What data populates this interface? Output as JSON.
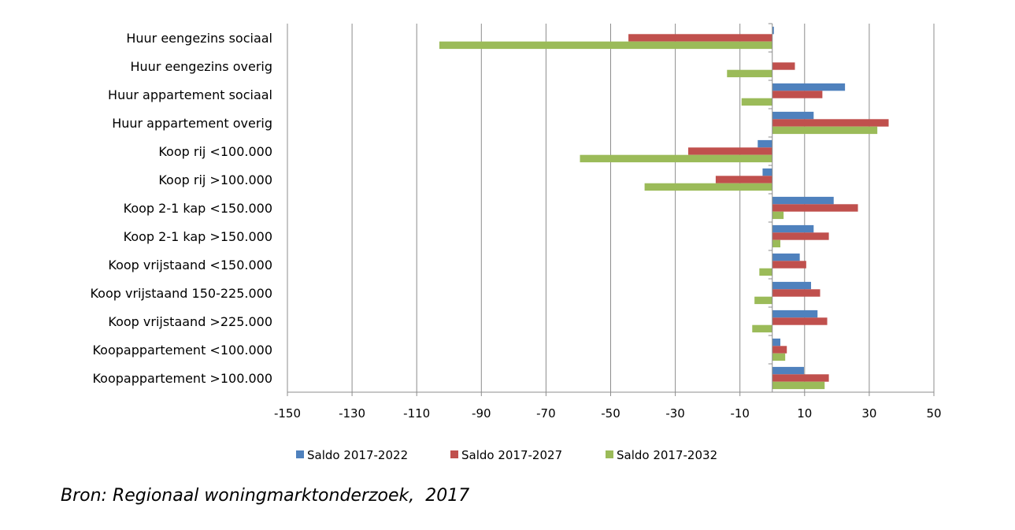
{
  "chart_data": {
    "type": "bar",
    "orientation": "horizontal",
    "categories": [
      "Huur eengezins sociaal",
      "Huur eengezins overig",
      "Huur appartement sociaal",
      "Huur appartement overig",
      "Koop rij <100.000",
      "Koop rij >100.000",
      "Koop 2-1 kap <150.000",
      "Koop 2-1 kap >150.000",
      "Koop vrijstaand <150.000",
      "Koop vrijstaand 150-225.000",
      "Koop vrijstaand >225.000",
      "Koopappartement <100.000",
      "Koopappartement >100.000"
    ],
    "series": [
      {
        "name": "Saldo 2017-2022",
        "color": "#4f81bd",
        "values": [
          0.5,
          0,
          22.5,
          12.8,
          -4.5,
          -3,
          19,
          12.8,
          8.5,
          12,
          14,
          2.5,
          9.8
        ]
      },
      {
        "name": "Saldo 2017-2027",
        "color": "#c0504d",
        "values": [
          -44.5,
          7,
          15.5,
          36,
          -26,
          -17.5,
          26.5,
          17.5,
          10.5,
          14.8,
          17,
          4.5,
          17.5
        ]
      },
      {
        "name": "Saldo 2017-2032",
        "color": "#9bbb59",
        "values": [
          -103,
          -14,
          -9.5,
          32.5,
          -59.5,
          -39.5,
          3.5,
          2.5,
          -4,
          -5.5,
          -6.2,
          4,
          16.2
        ]
      }
    ],
    "xlim": [
      -150,
      50
    ],
    "xticks": [
      "-150",
      "-130",
      "-110",
      "-90",
      "-70",
      "-50",
      "-30",
      "-10",
      "10",
      "30",
      "50"
    ],
    "grid": "vertical",
    "legend_position": "bottom"
  },
  "source_note": "Bron: Regionaal woningmarktonderzoek,  2017"
}
